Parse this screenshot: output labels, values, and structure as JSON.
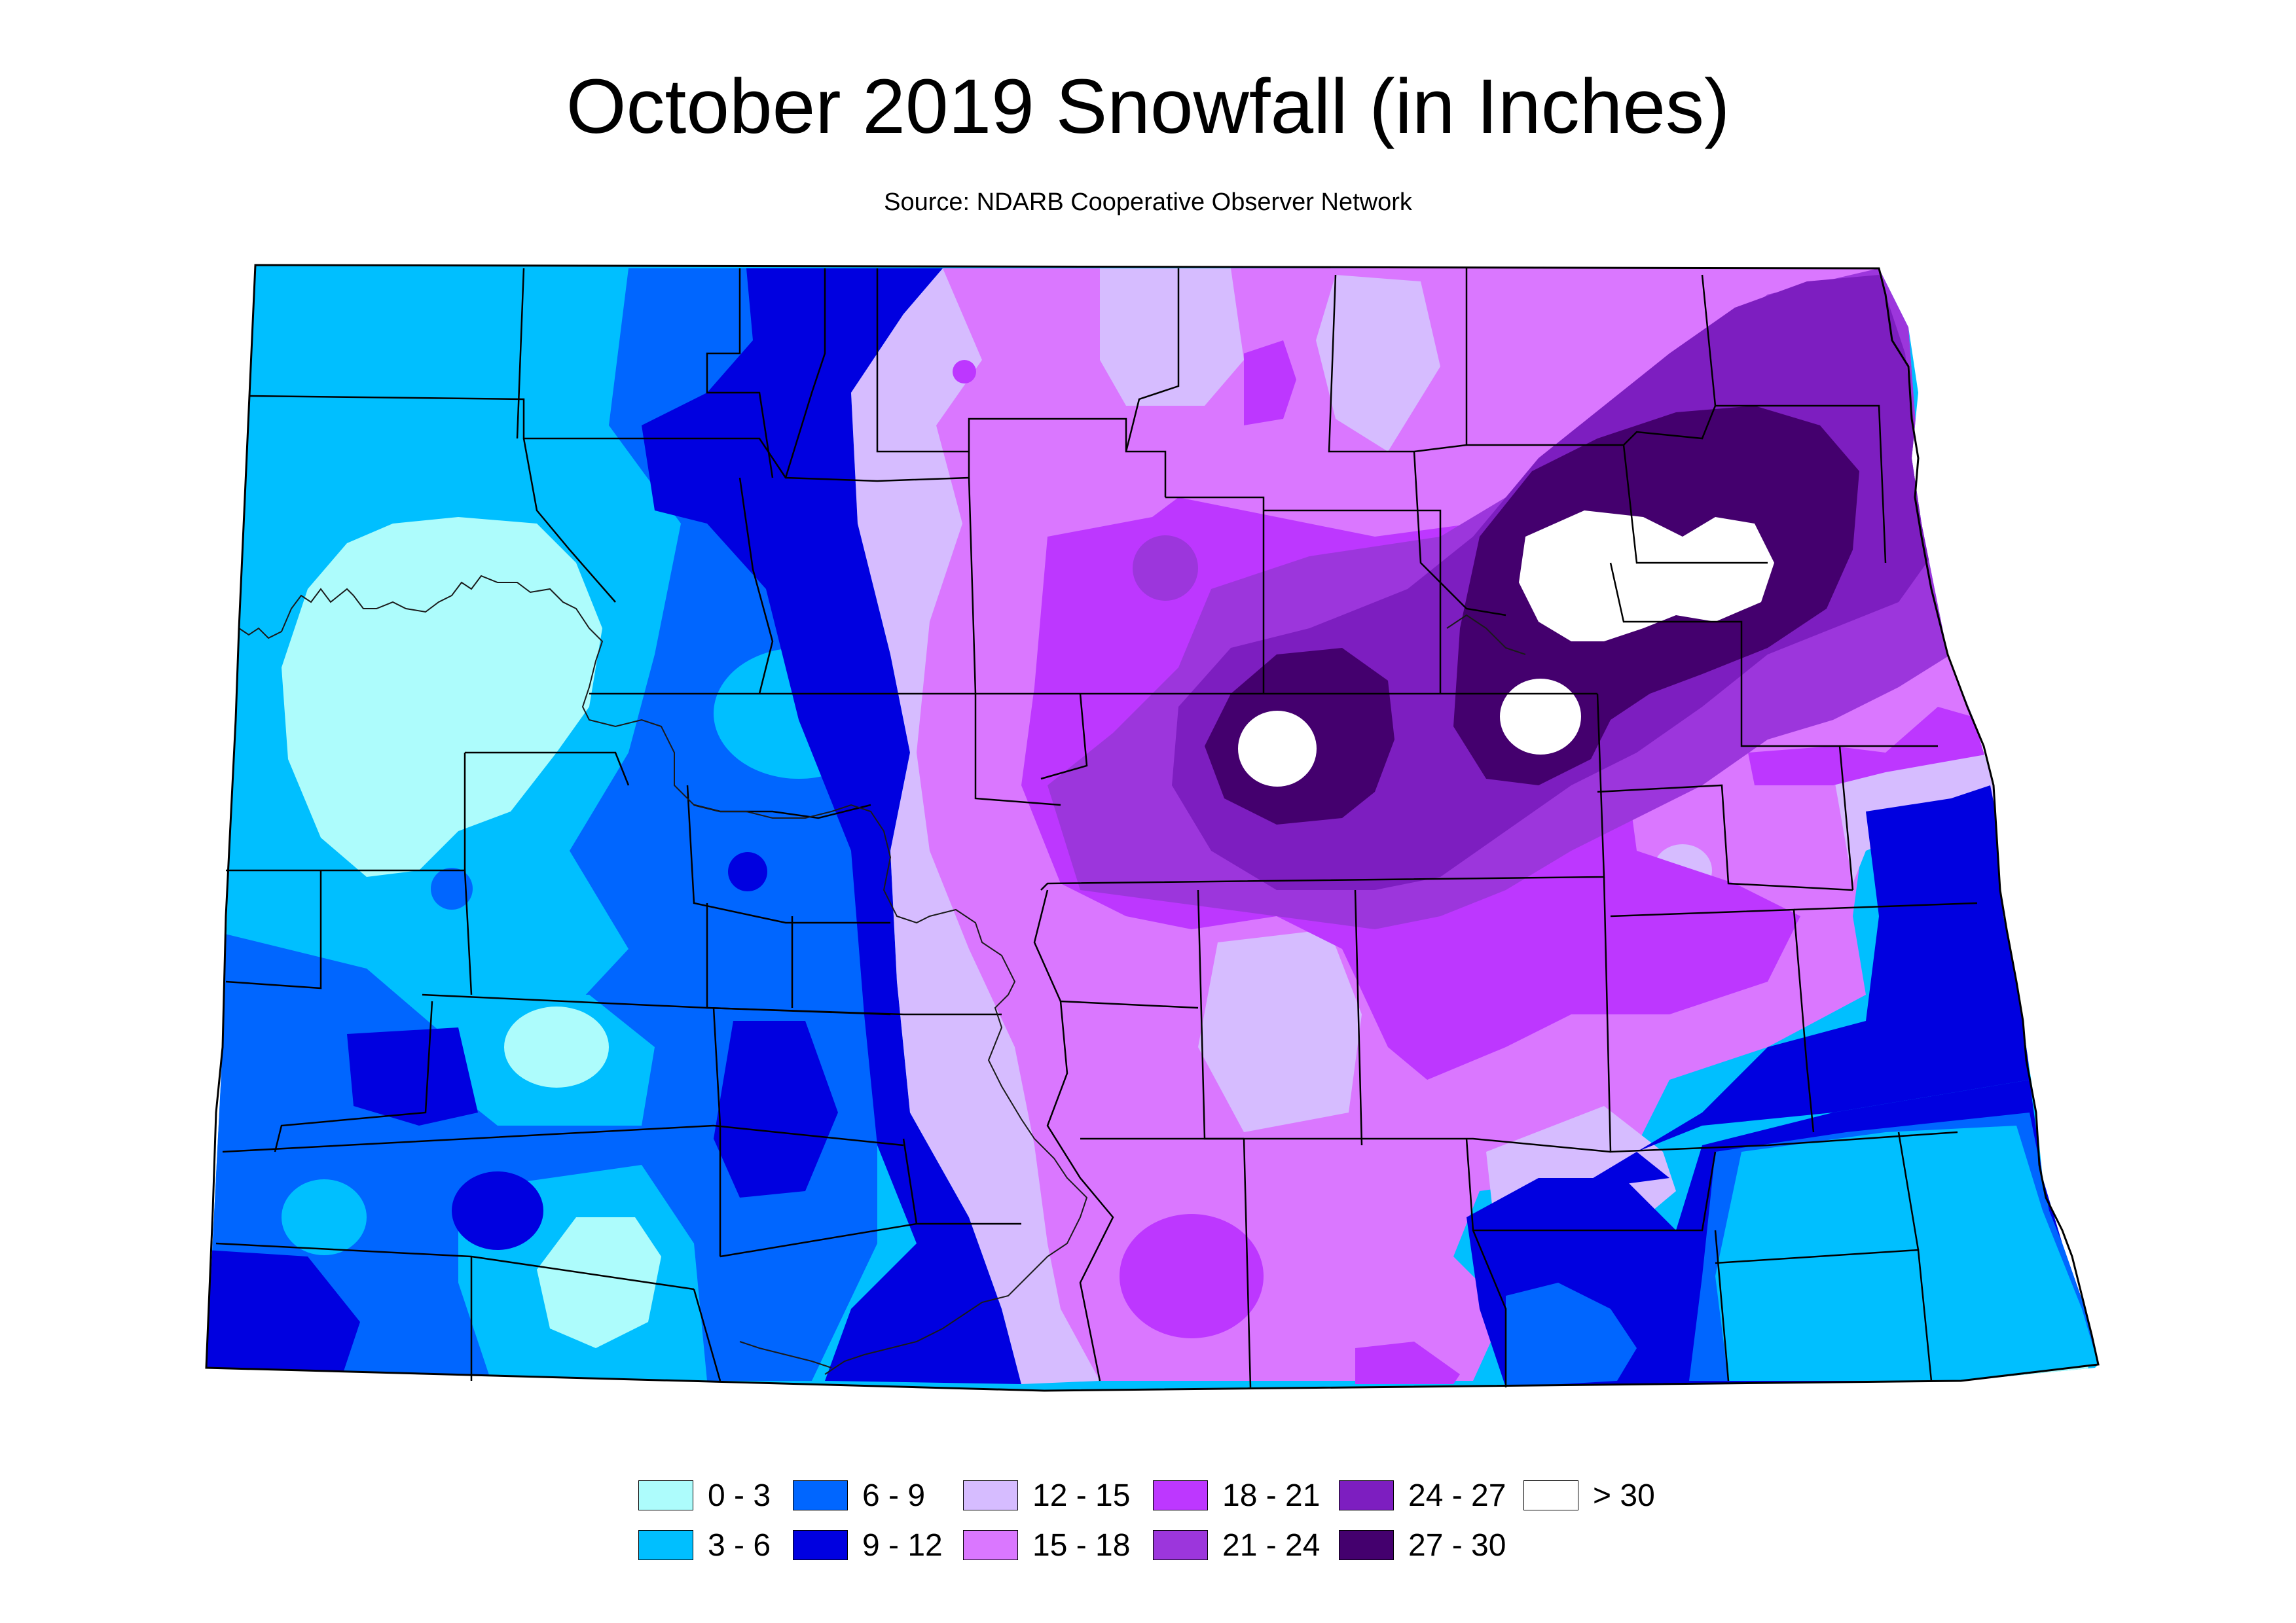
{
  "title": "October 2019 Snowfall (in Inches)",
  "source": "Source: NDARB Cooperative Observer Network",
  "legend": {
    "items": [
      {
        "label": "0 - 3",
        "color": "#adfcfc"
      },
      {
        "label": "3 - 6",
        "color": "#00bfff"
      },
      {
        "label": "6 - 9",
        "color": "#0066ff"
      },
      {
        "label": "9 - 12",
        "color": "#0000e0"
      },
      {
        "label": "12 - 15",
        "color": "#d6bcff"
      },
      {
        "label": "15 - 18",
        "color": "#da77ff"
      },
      {
        "label": "18 - 21",
        "color": "#bd37ff"
      },
      {
        "label": "21 - 24",
        "color": "#9c36dc"
      },
      {
        "label": "24 - 27",
        "color": "#7d1ec0"
      },
      {
        "label": "27 - 30",
        "color": "#44006e"
      },
      {
        "label": "> 30",
        "color": "#ffffff"
      }
    ]
  }
}
